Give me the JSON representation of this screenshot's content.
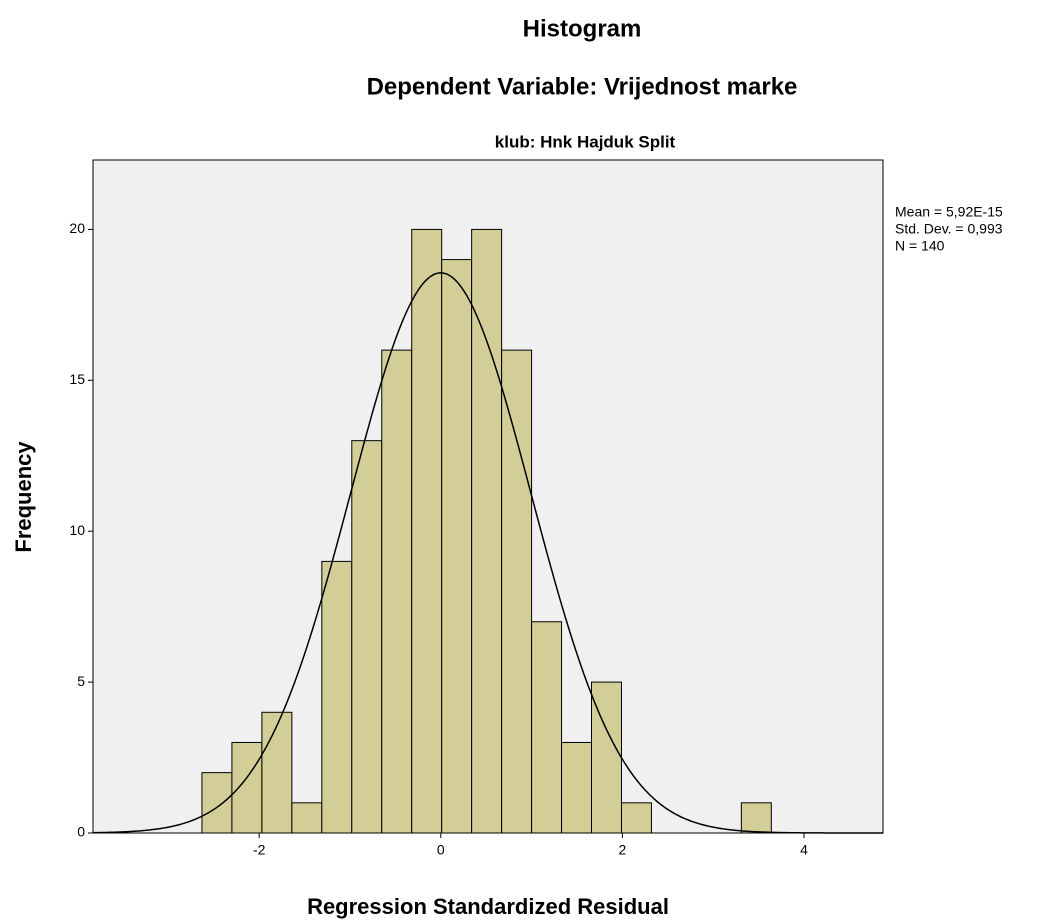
{
  "chart_data": {
    "type": "histogram",
    "title": "Histogram",
    "subtitle": "Dependent Variable: Vrijednost marke",
    "panel_title": "klub: Hnk Hajduk Split",
    "xlabel": "Regression Standardized Residual",
    "ylabel": "Frequency",
    "annotations": [
      "Mean = 5,92E-15",
      "Std. Dev. = 0,993",
      "N = 140"
    ],
    "bins": [
      -2.63,
      -2.3,
      -1.97,
      -1.64,
      -1.31,
      -0.98,
      -0.65,
      -0.32,
      0.01,
      0.34,
      0.67,
      1.0,
      1.33,
      1.66,
      1.99,
      2.32,
      2.65,
      2.98,
      3.31,
      3.64
    ],
    "counts": [
      2,
      3,
      4,
      1,
      9,
      13,
      16,
      20,
      19,
      20,
      16,
      7,
      3,
      5,
      1,
      0,
      0,
      0,
      1
    ],
    "color": "#d3ce97",
    "curve": {
      "mean": 5.92e-15,
      "sd": 0.993,
      "n": 140
    },
    "xlim": [
      -3.83,
      4.87
    ],
    "xticks": [
      -2,
      0,
      2,
      4
    ],
    "ylim": [
      0,
      22.3
    ],
    "yticks": [
      0,
      5,
      10,
      15,
      20
    ]
  }
}
